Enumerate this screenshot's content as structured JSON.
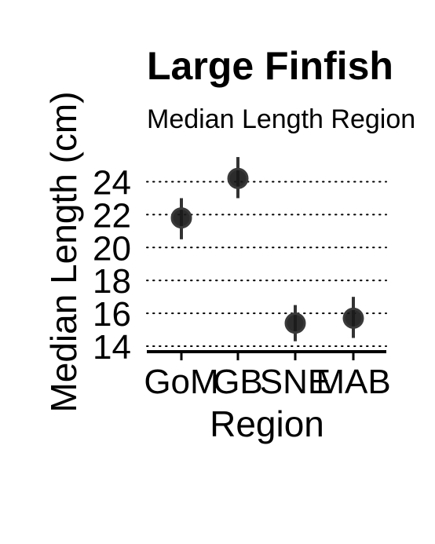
{
  "chart_data": {
    "type": "scatter",
    "title": "Large Finfish",
    "subtitle": "Median Length Region",
    "xlabel": "Region",
    "ylabel": "Median Length (cm)",
    "categories": [
      "GoM",
      "GB",
      "SNE",
      "MAB"
    ],
    "series": [
      {
        "values": [
          21.8,
          24.2,
          15.4,
          15.7
        ],
        "lower": [
          20.5,
          23.0,
          14.3,
          14.5
        ],
        "upper": [
          23.0,
          25.5,
          16.5,
          17.0
        ]
      }
    ],
    "yticks": [
      14,
      16,
      18,
      20,
      22,
      24
    ],
    "ylim": [
      13.7,
      25.8
    ],
    "grid": "horizontal-dotted",
    "point_color": "#1a1a1a"
  }
}
